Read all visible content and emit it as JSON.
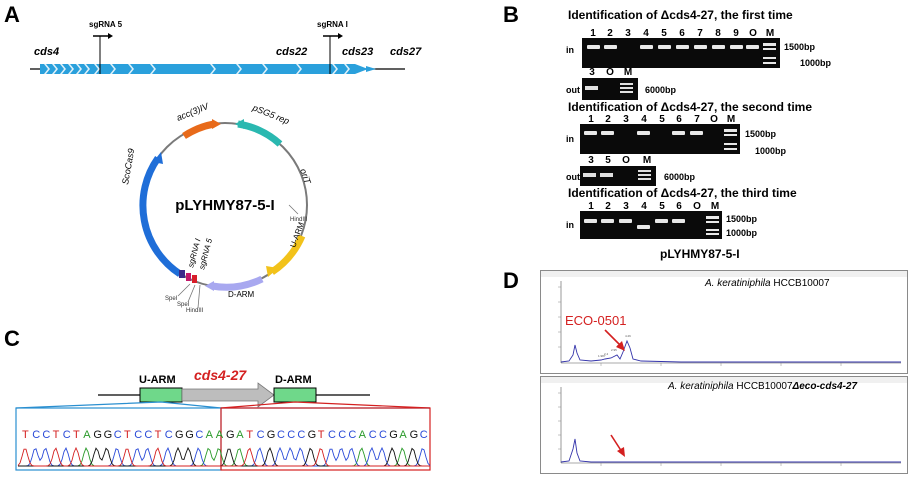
{
  "panels": {
    "a": "A",
    "b": "B",
    "c": "C",
    "d": "D"
  },
  "panel_a": {
    "sgrna5": "sgRNA 5",
    "sgrna1": "sgRNA I",
    "genes": [
      "cds4",
      "cds22",
      "cds23",
      "cds27"
    ],
    "plasmid_name": "pLYHMY87-5-I",
    "features": {
      "acc": "acc(3)IV",
      "psg5rep": "pSG5 rep",
      "orit": "oriT",
      "hindiii_top": "HindIII",
      "uarm": "U-ARM",
      "darm": "D-ARM",
      "scocas9": "ScoCas9",
      "sgrna_i": "sgRNA I",
      "sgrna_5": "sgRNA 5",
      "spei_1": "SpeI",
      "spei_2": "SpeI",
      "hindiii_bottom": "HindIII"
    }
  },
  "panel_b": {
    "gel1": {
      "title": "Identification of Δcds4-27, the first time",
      "lanes": [
        "1",
        "2",
        "3",
        "4",
        "5",
        "6",
        "7",
        "8",
        "9",
        "O",
        "M"
      ],
      "in_label": "in",
      "out_label": "out",
      "out_lanes": [
        "3",
        "O",
        "M"
      ],
      "m1500": "1500bp",
      "m1000": "1000bp",
      "m6000": "6000bp"
    },
    "gel2": {
      "title": "Identification of Δcds4-27, the second time",
      "lanes": [
        "1",
        "2",
        "3",
        "4",
        "5",
        "6",
        "7",
        "O",
        "M"
      ],
      "in_label": "in",
      "out_label": "out",
      "out_lanes": [
        "3",
        "5",
        "O",
        "M"
      ],
      "m1500": "1500bp",
      "m1000": "1000bp",
      "m6000": "6000bp"
    },
    "gel3": {
      "title": "Identification of Δcds4-27, the third time",
      "lanes": [
        "1",
        "2",
        "3",
        "4",
        "5",
        "6",
        "O",
        "M"
      ],
      "in_label": "in",
      "m1500": "1500bp",
      "m1000": "1000bp"
    },
    "caption": "pLYHMY87-5-I"
  },
  "panel_c": {
    "uarm": "U-ARM",
    "gene": "cds4-27",
    "darm": "D-ARM",
    "sequence": "TCCTCTAGGCTCCTCGGCAAGATCGCCCGTCCCACCGAGC"
  },
  "panel_d": {
    "top_title_species": "A. keratiniphila",
    "top_title_strain": "HCCB10007",
    "top_compound": "ECO-0501",
    "bottom_title_species": "A. keratiniphila",
    "bottom_title_strain": "HCCB10007",
    "bottom_mutant": "Δeco-cds4-27",
    "accent_color": "#d42020",
    "trace_color": "#3333aa"
  }
}
